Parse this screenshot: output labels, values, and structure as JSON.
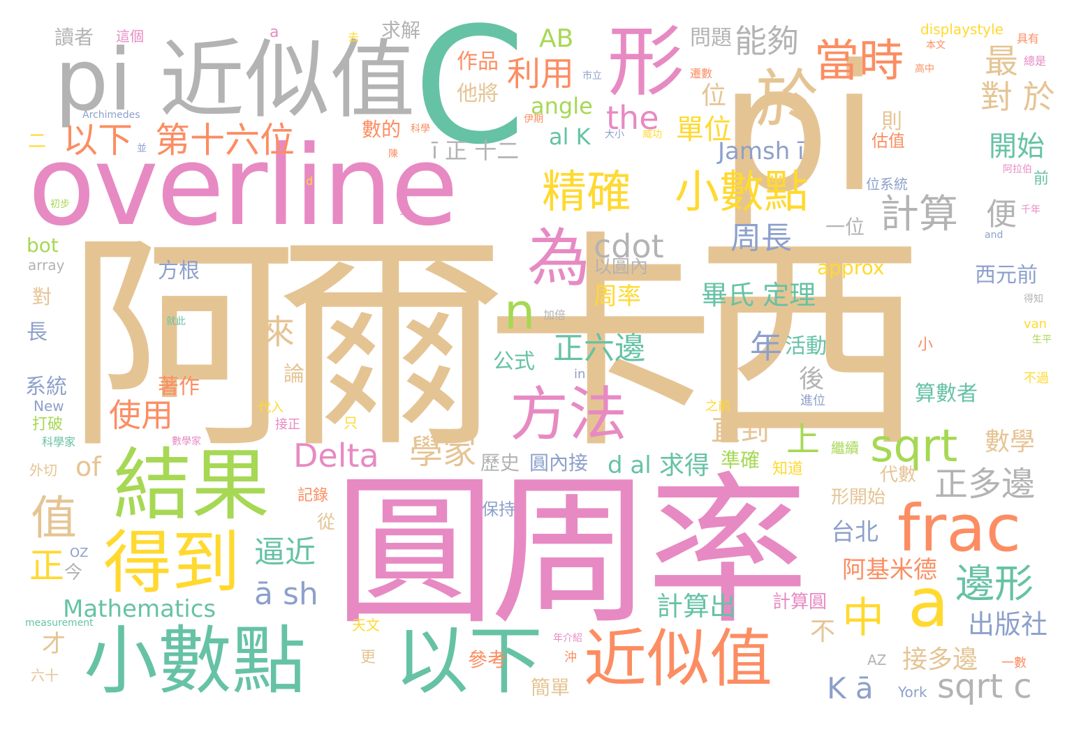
{
  "palette": {
    "tan": "#e5c494",
    "pink": "#e78ac3",
    "teal": "#66c2a5",
    "green": "#a6d854",
    "yellow": "#ffd92f",
    "orange": "#fc8d62",
    "blue": "#8da0cb",
    "gray": "#b3b3b3"
  },
  "words": [
    {
      "text": "阿爾卡西",
      "color": "tan"
    },
    {
      "text": "圓周率",
      "color": "pink"
    },
    {
      "text": "overline",
      "color": "pink"
    },
    {
      "text": "pi",
      "color": "tan"
    },
    {
      "text": "C",
      "color": "teal"
    },
    {
      "text": "pi 近似值",
      "color": "gray"
    },
    {
      "text": "小數點",
      "color": "teal"
    },
    {
      "text": "以下",
      "color": "teal"
    },
    {
      "text": "近似值",
      "color": "orange"
    },
    {
      "text": "結果",
      "color": "green"
    },
    {
      "text": "得到",
      "color": "yellow"
    },
    {
      "text": "形",
      "color": "pink"
    },
    {
      "text": "於",
      "color": "tan"
    },
    {
      "text": "為",
      "color": "pink"
    },
    {
      "text": "方法",
      "color": "pink"
    },
    {
      "text": "frac",
      "color": "orange"
    },
    {
      "text": "a",
      "color": "yellow"
    },
    {
      "text": "小數點",
      "color": "yellow"
    },
    {
      "text": "精確",
      "color": "yellow"
    },
    {
      "text": "當時",
      "color": "orange"
    },
    {
      "text": "sqrt",
      "color": "green"
    },
    {
      "text": "邊形",
      "color": "teal"
    },
    {
      "text": "第十六位",
      "color": "orange"
    },
    {
      "text": "以下",
      "color": "orange"
    },
    {
      "text": "計算",
      "color": "gray"
    },
    {
      "text": "n",
      "color": "green"
    },
    {
      "text": "cdot",
      "color": "gray"
    },
    {
      "text": "利用",
      "color": "orange"
    },
    {
      "text": "能夠",
      "color": "gray"
    },
    {
      "text": "the",
      "color": "pink"
    },
    {
      "text": "Delta",
      "color": "pink"
    },
    {
      "text": "學家",
      "color": "tan"
    },
    {
      "text": "正多邊",
      "color": "gray"
    },
    {
      "text": "sqrt c",
      "color": "gray"
    },
    {
      "text": "中",
      "color": "yellow"
    },
    {
      "text": "對 於",
      "color": "tan"
    },
    {
      "text": "逼近",
      "color": "teal"
    },
    {
      "text": "ā sh",
      "color": "blue"
    },
    {
      "text": "Mathematics",
      "color": "teal"
    },
    {
      "text": "使用",
      "color": "orange"
    },
    {
      "text": "正六邊",
      "color": "teal"
    },
    {
      "text": "周長",
      "color": "blue"
    },
    {
      "text": "直到",
      "color": "tan"
    },
    {
      "text": "數學",
      "color": "tan"
    },
    {
      "text": "開始",
      "color": "teal"
    },
    {
      "text": "單位",
      "color": "yellow"
    },
    {
      "text": "Jamsh ī",
      "color": "blue"
    },
    {
      "text": "畢氏 定理",
      "color": "teal"
    },
    {
      "text": "出版社",
      "color": "blue"
    },
    {
      "text": "接多邊",
      "color": "tan"
    },
    {
      "text": "K ā",
      "color": "blue"
    },
    {
      "text": "計算出",
      "color": "teal"
    },
    {
      "text": "阿基米德",
      "color": "orange"
    },
    {
      "text": "AB",
      "color": "green"
    },
    {
      "text": "angle",
      "color": "green"
    },
    {
      "text": "al K",
      "color": "teal"
    },
    {
      "text": "ī 正 十二",
      "color": "gray"
    },
    {
      "text": "approx",
      "color": "yellow"
    },
    {
      "text": "d al",
      "color": "teal"
    },
    {
      "text": "求得",
      "color": "teal"
    },
    {
      "text": "西元前",
      "color": "blue"
    },
    {
      "text": "台北",
      "color": "blue"
    },
    {
      "text": "周率",
      "color": "yellow"
    },
    {
      "text": "方根",
      "color": "blue"
    },
    {
      "text": "公式",
      "color": "teal"
    },
    {
      "text": "活動",
      "color": "teal"
    },
    {
      "text": "著作",
      "color": "orange"
    },
    {
      "text": "算數者",
      "color": "teal"
    },
    {
      "text": "年",
      "color": "blue"
    },
    {
      "text": "上",
      "color": "green"
    },
    {
      "text": "值",
      "color": "tan"
    },
    {
      "text": "of",
      "color": "tan"
    },
    {
      "text": "最",
      "color": "tan"
    },
    {
      "text": "便",
      "color": "gray"
    },
    {
      "text": "位",
      "color": "tan"
    },
    {
      "text": "來",
      "color": "tan"
    },
    {
      "text": "正",
      "color": "yellow"
    },
    {
      "text": "後",
      "color": "gray"
    },
    {
      "text": "不",
      "color": "tan"
    },
    {
      "text": "一位",
      "color": "gray"
    },
    {
      "text": "系統",
      "color": "blue"
    },
    {
      "text": "作品",
      "color": "orange"
    },
    {
      "text": "他將",
      "color": "tan"
    },
    {
      "text": "問題",
      "color": "gray"
    },
    {
      "text": "讀者",
      "color": "gray"
    },
    {
      "text": "求解",
      "color": "gray"
    },
    {
      "text": "displaystyle",
      "color": "yellow"
    },
    {
      "text": "bot",
      "color": "green"
    },
    {
      "text": "array",
      "color": "gray"
    },
    {
      "text": "參考",
      "color": "orange"
    },
    {
      "text": "簡單",
      "color": "tan"
    },
    {
      "text": "計算圓",
      "color": "pink"
    },
    {
      "text": "形開始",
      "color": "tan"
    },
    {
      "text": "代數",
      "color": "tan"
    },
    {
      "text": "準確",
      "color": "green"
    },
    {
      "text": "歷史",
      "color": "gray"
    },
    {
      "text": "圓內接",
      "color": "blue"
    },
    {
      "text": "以圓內",
      "color": "gray"
    },
    {
      "text": "數的",
      "color": "orange"
    },
    {
      "text": "保持",
      "color": "blue"
    },
    {
      "text": "論",
      "color": "tan"
    },
    {
      "text": "從",
      "color": "tan"
    },
    {
      "text": "長",
      "color": "blue"
    },
    {
      "text": "對",
      "color": "tan"
    },
    {
      "text": "才",
      "color": "tan"
    },
    {
      "text": "今",
      "color": "gray"
    },
    {
      "text": "New",
      "color": "blue"
    },
    {
      "text": "打破",
      "color": "green"
    },
    {
      "text": "外切",
      "color": "tan"
    },
    {
      "text": "記錄",
      "color": "orange"
    },
    {
      "text": "知道",
      "color": "yellow"
    },
    {
      "text": "繼續",
      "color": "green"
    },
    {
      "text": "則",
      "color": "tan"
    },
    {
      "text": "估值",
      "color": "orange"
    },
    {
      "text": "位系統",
      "color": "blue"
    },
    {
      "text": "York",
      "color": "blue"
    },
    {
      "text": "AZ",
      "color": "gray"
    },
    {
      "text": "van",
      "color": "yellow"
    },
    {
      "text": "in",
      "color": "blue"
    },
    {
      "text": "a",
      "color": "pink"
    },
    {
      "text": "二",
      "color": "yellow"
    },
    {
      "text": "前",
      "color": "teal"
    },
    {
      "text": "小",
      "color": "orange"
    },
    {
      "text": "不過",
      "color": "yellow"
    },
    {
      "text": "更",
      "color": "tan"
    },
    {
      "text": "六十",
      "color": "tan"
    },
    {
      "text": "天文",
      "color": "yellow"
    },
    {
      "text": "OZ",
      "color": "blue"
    },
    {
      "text": "Archimedes",
      "color": "blue"
    },
    {
      "text": "measurement",
      "color": "teal"
    },
    {
      "text": "科學家",
      "color": "teal"
    },
    {
      "text": "進位",
      "color": "blue"
    },
    {
      "text": "一數",
      "color": "orange"
    },
    {
      "text": "之前",
      "color": "yellow"
    },
    {
      "text": "代入",
      "color": "yellow"
    },
    {
      "text": "接正",
      "color": "pink"
    },
    {
      "text": "只",
      "color": "yellow"
    },
    {
      "text": "沖",
      "color": "orange"
    },
    {
      "text": "伊期",
      "color": "orange"
    },
    {
      "text": "大小",
      "color": "blue"
    },
    {
      "text": "威功",
      "color": "yellow"
    },
    {
      "text": "科學",
      "color": "orange"
    },
    {
      "text": "遷數",
      "color": "orange"
    },
    {
      "text": "市立",
      "color": "blue"
    },
    {
      "text": "高中",
      "color": "orange"
    },
    {
      "text": "本文",
      "color": "orange"
    },
    {
      "text": "具有",
      "color": "orange"
    },
    {
      "text": "總是",
      "color": "pink"
    },
    {
      "text": "阿拉伯",
      "color": "pink"
    },
    {
      "text": "千年",
      "color": "pink"
    },
    {
      "text": "and",
      "color": "blue"
    },
    {
      "text": "得知",
      "color": "gray"
    },
    {
      "text": "生平",
      "color": "green"
    },
    {
      "text": "這個",
      "color": "pink"
    },
    {
      "text": "去",
      "color": "yellow"
    },
    {
      "text": "陳",
      "color": "orange"
    },
    {
      "text": "並",
      "color": "blue"
    },
    {
      "text": "d",
      "color": "yellow"
    },
    {
      "text": "初步",
      "color": "green"
    },
    {
      "text": "式",
      "color": "pink"
    },
    {
      "text": "數學家",
      "color": "pink"
    },
    {
      "text": "就此",
      "color": "teal"
    },
    {
      "text": "加倍",
      "color": "gray"
    },
    {
      "text": "年介紹",
      "color": "pink"
    }
  ]
}
